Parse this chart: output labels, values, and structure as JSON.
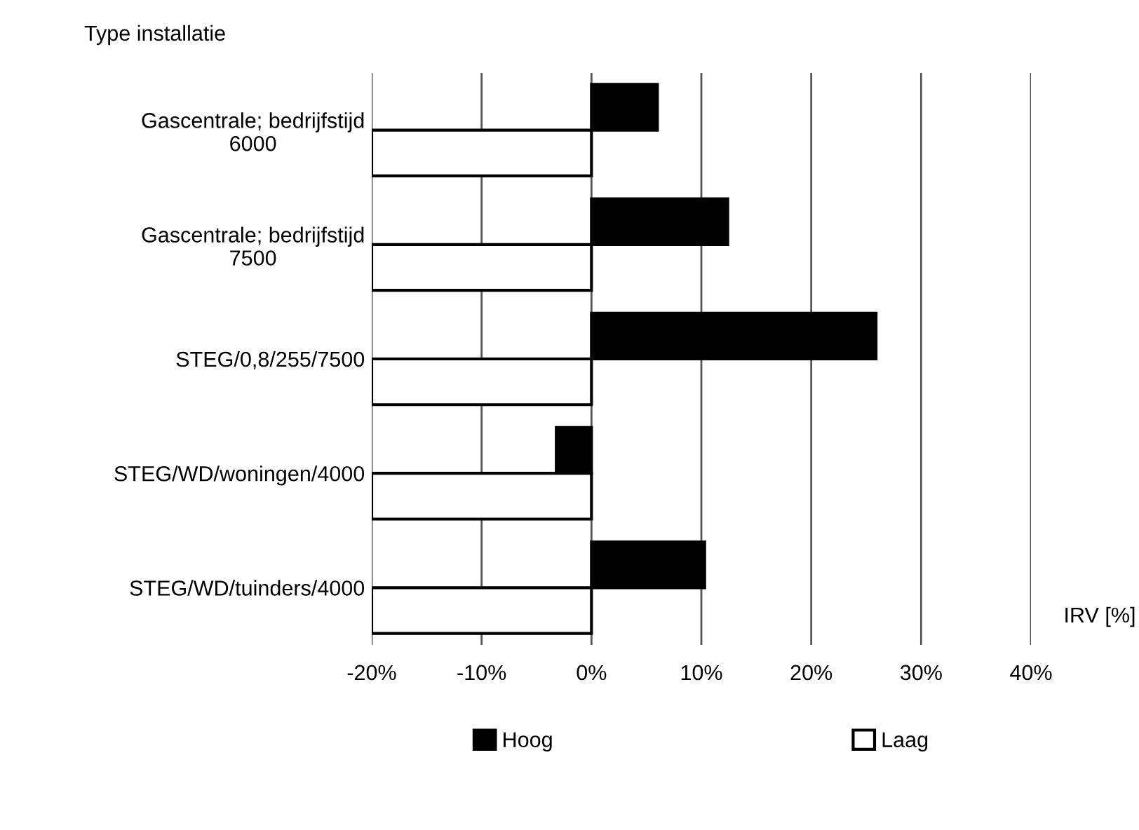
{
  "chart_data": {
    "type": "bar",
    "orientation": "horizontal",
    "ylabel": "Type installatie",
    "xlabel": "IRV [%]",
    "categories": [
      "Gascentrale; bedrijfstijd\n6000",
      "Gascentrale; bedrijfstijd\n7500",
      "STEG/0,8/255/7500",
      "STEG/WD/woningen/4000",
      "STEG/WD/tuinders/4000"
    ],
    "series": [
      {
        "name": "Hoog",
        "color": "#000000",
        "values": [
          6.0,
          12.4,
          25.9,
          -3.2,
          10.3
        ]
      },
      {
        "name": "Laag",
        "color": "#ffffff",
        "values": [
          -20,
          -20,
          -20,
          -20,
          -20
        ]
      }
    ],
    "xlim": [
      -20,
      40
    ],
    "xticks": [
      {
        "value": -20,
        "label": "-20%"
      },
      {
        "value": -10,
        "label": "-10%"
      },
      {
        "value": 0,
        "label": "0%"
      },
      {
        "value": 10,
        "label": "10%"
      },
      {
        "value": 20,
        "label": "20%"
      },
      {
        "value": 30,
        "label": "30%"
      },
      {
        "value": 40,
        "label": "40%"
      }
    ],
    "grid": "x",
    "legend": "bottom"
  }
}
